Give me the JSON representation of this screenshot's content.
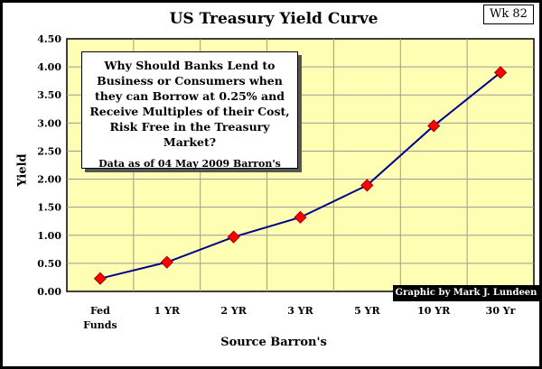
{
  "week_tag": "Wk 82",
  "annotation": {
    "main": "Why Should Banks Lend to Business or Consumers when they can Borrow at 0.25% and Receive Multiples of their Cost, Risk Free in the Treasury Market?",
    "sub": "Data as of 04 May 2009 Barron's"
  },
  "credit": "Graphic by Mark J. Lundeen",
  "colors": {
    "plot_background": "#ffffb3",
    "gridline": "#9a9a9a",
    "line": "#00008b",
    "marker": "#ff0000"
  },
  "chart_data": {
    "type": "line",
    "title": "US Treasury Yield Curve",
    "xlabel": "Source Barron's",
    "ylabel": "Yield",
    "categories": [
      "Fed Funds",
      "1 YR",
      "2 YR",
      "3 YR",
      "5 YR",
      "10 YR",
      "30 Yr"
    ],
    "values": [
      0.23,
      0.52,
      0.97,
      1.32,
      1.89,
      2.95,
      3.9
    ],
    "ylim": [
      0,
      4.5
    ],
    "yticks": [
      "0.00",
      "0.50",
      "1.00",
      "1.50",
      "2.00",
      "2.50",
      "3.00",
      "3.50",
      "4.00",
      "4.50"
    ],
    "grid": true,
    "marker": "diamond"
  }
}
